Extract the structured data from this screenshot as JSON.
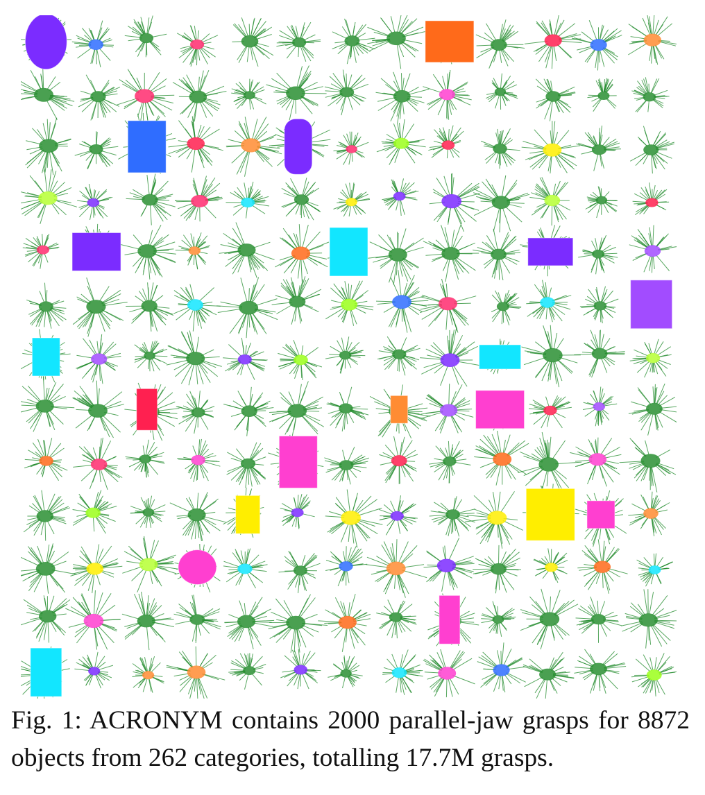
{
  "figure": {
    "label": "Fig. 1:",
    "caption": "ACRONYM contains 2000 parallel-jaw grasps for 8872 objects from 262 categories, totalling 17.7M grasps.",
    "grasp_color": "#1f8a2a",
    "object_colors": [
      "#7b2cff",
      "#ff3fd0",
      "#ffee00",
      "#12e6ff",
      "#2f6dff",
      "#ff6a1a",
      "#ff2050",
      "#9bff1a",
      "#a24cff",
      "#b6ff33",
      "#ff8c33",
      "#ff2b6e"
    ]
  }
}
